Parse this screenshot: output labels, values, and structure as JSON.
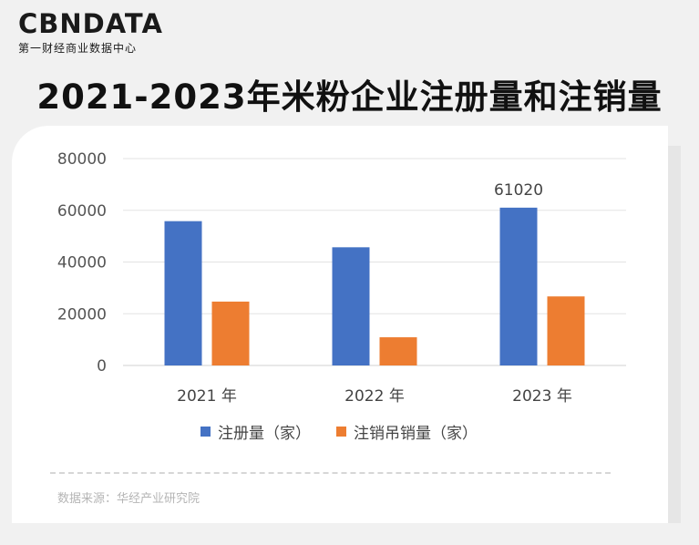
{
  "logo": {
    "brand": "CBNDATA",
    "tagline": "第一财经商业数据中心"
  },
  "title": "2021-2023年米粉企业注册量和注销量",
  "source": "数据来源：华经产业研究院",
  "colors": {
    "registered": "#4472c4",
    "cancelled": "#ed7d31"
  },
  "chart_data": {
    "type": "bar",
    "title": "2021-2023年米粉企业注册量和注销量",
    "categories": [
      "2021 年",
      "2022 年",
      "2023 年"
    ],
    "series": [
      {
        "name": "注册量（家）",
        "values": [
          55800,
          45700,
          61020
        ]
      },
      {
        "name": "注销吊销量（家）",
        "values": [
          24700,
          10900,
          26700
        ]
      }
    ],
    "data_labels": [
      {
        "series": 0,
        "index": 2,
        "text": "61020"
      }
    ],
    "ylim": [
      0,
      80000
    ],
    "yticks": [
      0,
      20000,
      40000,
      60000,
      80000
    ],
    "grid": true,
    "legend": "bottom"
  }
}
